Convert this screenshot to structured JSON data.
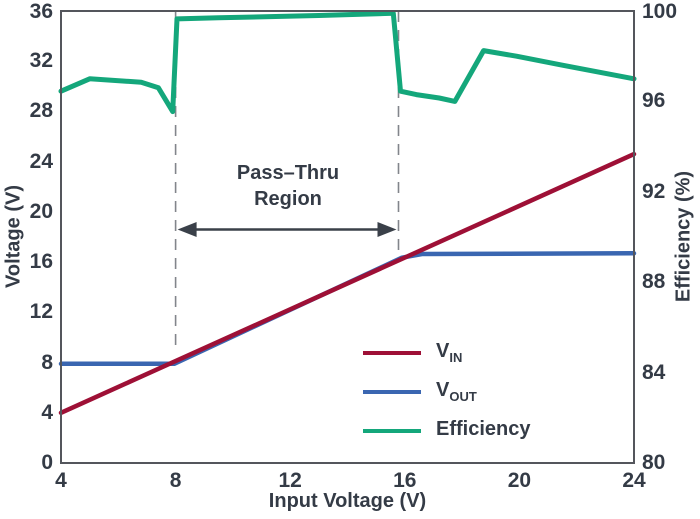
{
  "colors": {
    "background": "#FFFFFF",
    "text": "#343B46",
    "border": "#54565C",
    "dashed_line": "#82858B",
    "arrow": "#3A4049",
    "vin": "#9E1036",
    "vout": "#3A66B1",
    "efficiency": "#14A77B"
  },
  "chart_data": {
    "type": "line",
    "title": "",
    "xlabel": "Input Voltage (V)",
    "ylabel_left": "Voltage (V)",
    "ylabel_right": "Efficiency (%)",
    "xlim": [
      4,
      24
    ],
    "ylim_left": [
      0,
      36
    ],
    "ylim_right": [
      80,
      100
    ],
    "x_ticks": [
      4,
      8,
      12,
      16,
      20,
      24
    ],
    "y_ticks_left": [
      0,
      4,
      8,
      12,
      16,
      20,
      24,
      28,
      32,
      36
    ],
    "y_ticks_right": [
      80,
      84,
      88,
      92,
      96,
      100
    ],
    "grid": false,
    "legend_position": "lower-right-inside",
    "region": {
      "label_line1": "Pass–Thru",
      "label_line2": "Region",
      "x_start": 8,
      "x_end": 15.78
    },
    "series": [
      {
        "name": "VIN",
        "legend": {
          "main": "V",
          "sub": "IN"
        },
        "axis": "left",
        "color": "#9E1036",
        "points": [
          [
            4,
            4.0
          ],
          [
            24,
            24.6
          ]
        ]
      },
      {
        "name": "VOUT",
        "legend": {
          "main": "V",
          "sub": "OUT"
        },
        "axis": "left",
        "color": "#3A66B1",
        "points": [
          [
            4,
            7.9
          ],
          [
            7.95,
            7.9
          ],
          [
            15.9,
            16.35
          ],
          [
            16.6,
            16.65
          ],
          [
            24,
            16.7
          ]
        ]
      },
      {
        "name": "Efficiency",
        "legend": {
          "main": "Efficiency",
          "sub": ""
        },
        "axis": "right",
        "color": "#14A77B",
        "points": [
          [
            4,
            96.45
          ],
          [
            5,
            97.0
          ],
          [
            6.8,
            96.85
          ],
          [
            7.4,
            96.6
          ],
          [
            7.9,
            95.55
          ],
          [
            8.05,
            99.65
          ],
          [
            9.5,
            99.7
          ],
          [
            13,
            99.8
          ],
          [
            15.6,
            99.9
          ],
          [
            15.85,
            96.45
          ],
          [
            16.4,
            96.3
          ],
          [
            17.2,
            96.15
          ],
          [
            17.75,
            96.0
          ],
          [
            18.75,
            98.25
          ],
          [
            19.9,
            98.0
          ],
          [
            21.5,
            97.6
          ],
          [
            24,
            97.0
          ]
        ]
      }
    ]
  }
}
